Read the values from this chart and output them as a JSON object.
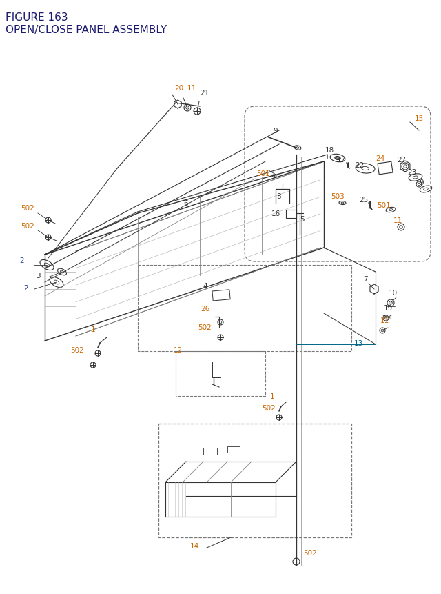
{
  "title_line1": "FIGURE 163",
  "title_line2": "OPEN/CLOSE PANEL ASSEMBLY",
  "title_color": "#1a1a6e",
  "title_fontsize": 11,
  "bg_color": "#ffffff",
  "label_color_orange": "#cc6600",
  "label_color_blue": "#1a3399",
  "label_color_black": "#333333",
  "label_color_teal": "#006688",
  "figsize": [
    6.4,
    8.62
  ],
  "dpi": 100
}
